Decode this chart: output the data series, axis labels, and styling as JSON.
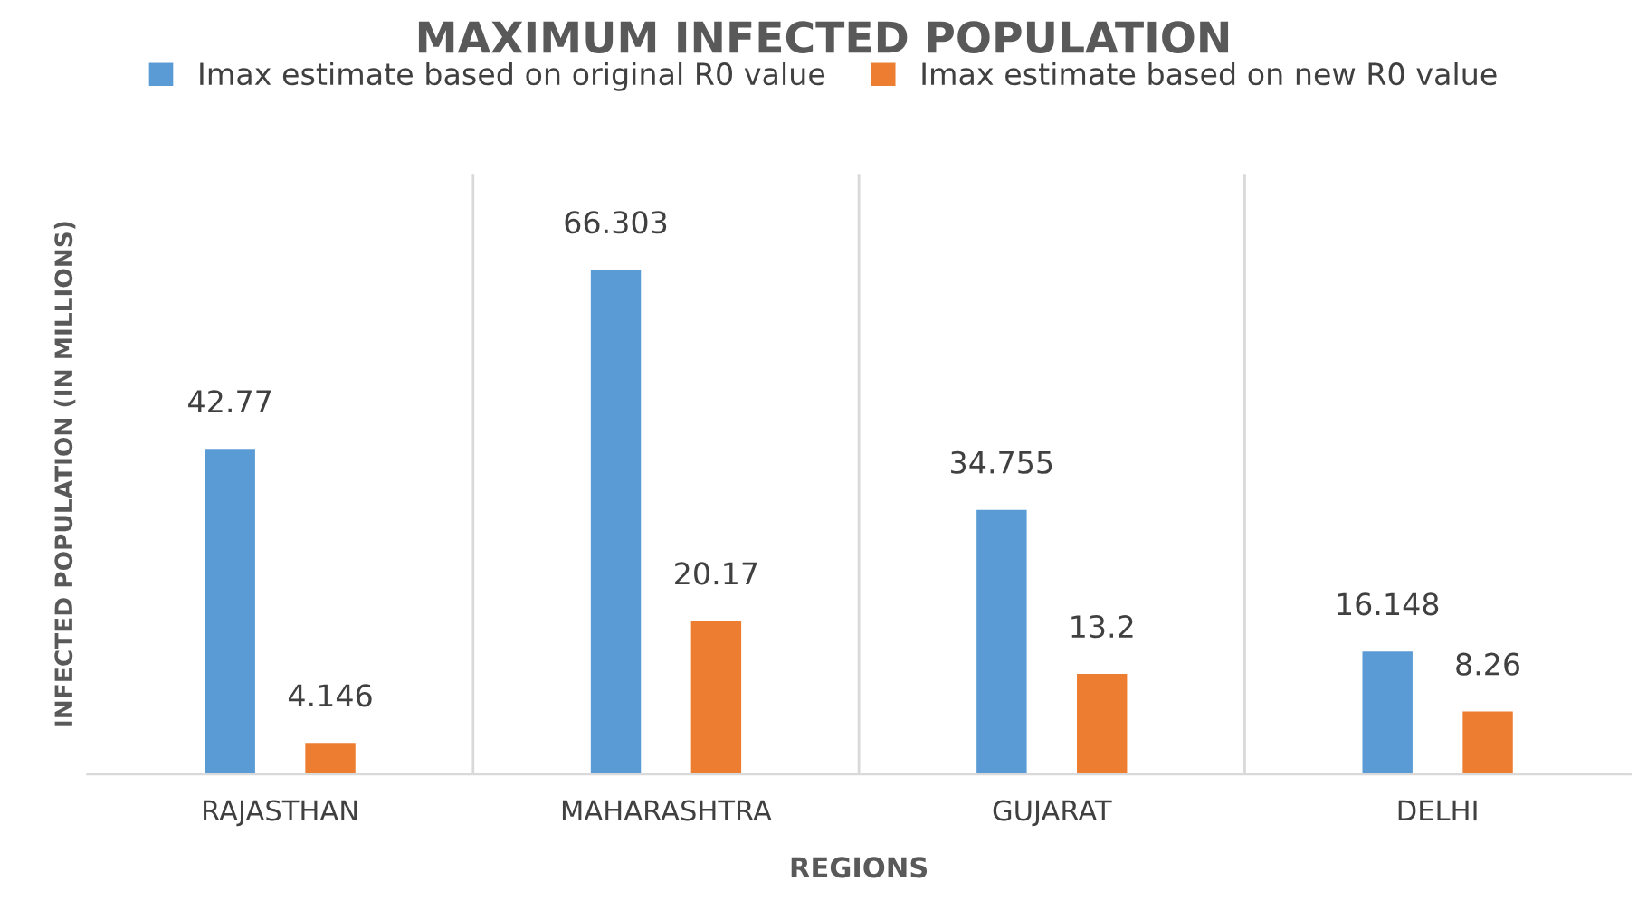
{
  "chart_data": {
    "type": "bar",
    "title": "MAXIMUM INFECTED POPULATION",
    "xlabel": "REGIONS",
    "ylabel": "INFECTED POPULATION (IN MILLIONS)",
    "categories": [
      "RAJASTHAN",
      "MAHARASHTRA",
      "GUJARAT",
      "DELHI"
    ],
    "series": [
      {
        "name": "Imax estimate based on original R0 value",
        "color": "#5b9bd5",
        "values": [
          42.77,
          66.303,
          34.755,
          16.148
        ]
      },
      {
        "name": "Imax estimate based on new R0 value",
        "color": "#ed7d31",
        "values": [
          4.146,
          20.17,
          13.2,
          8.26
        ]
      }
    ],
    "data_labels": true,
    "legend": "top",
    "grid": false
  }
}
